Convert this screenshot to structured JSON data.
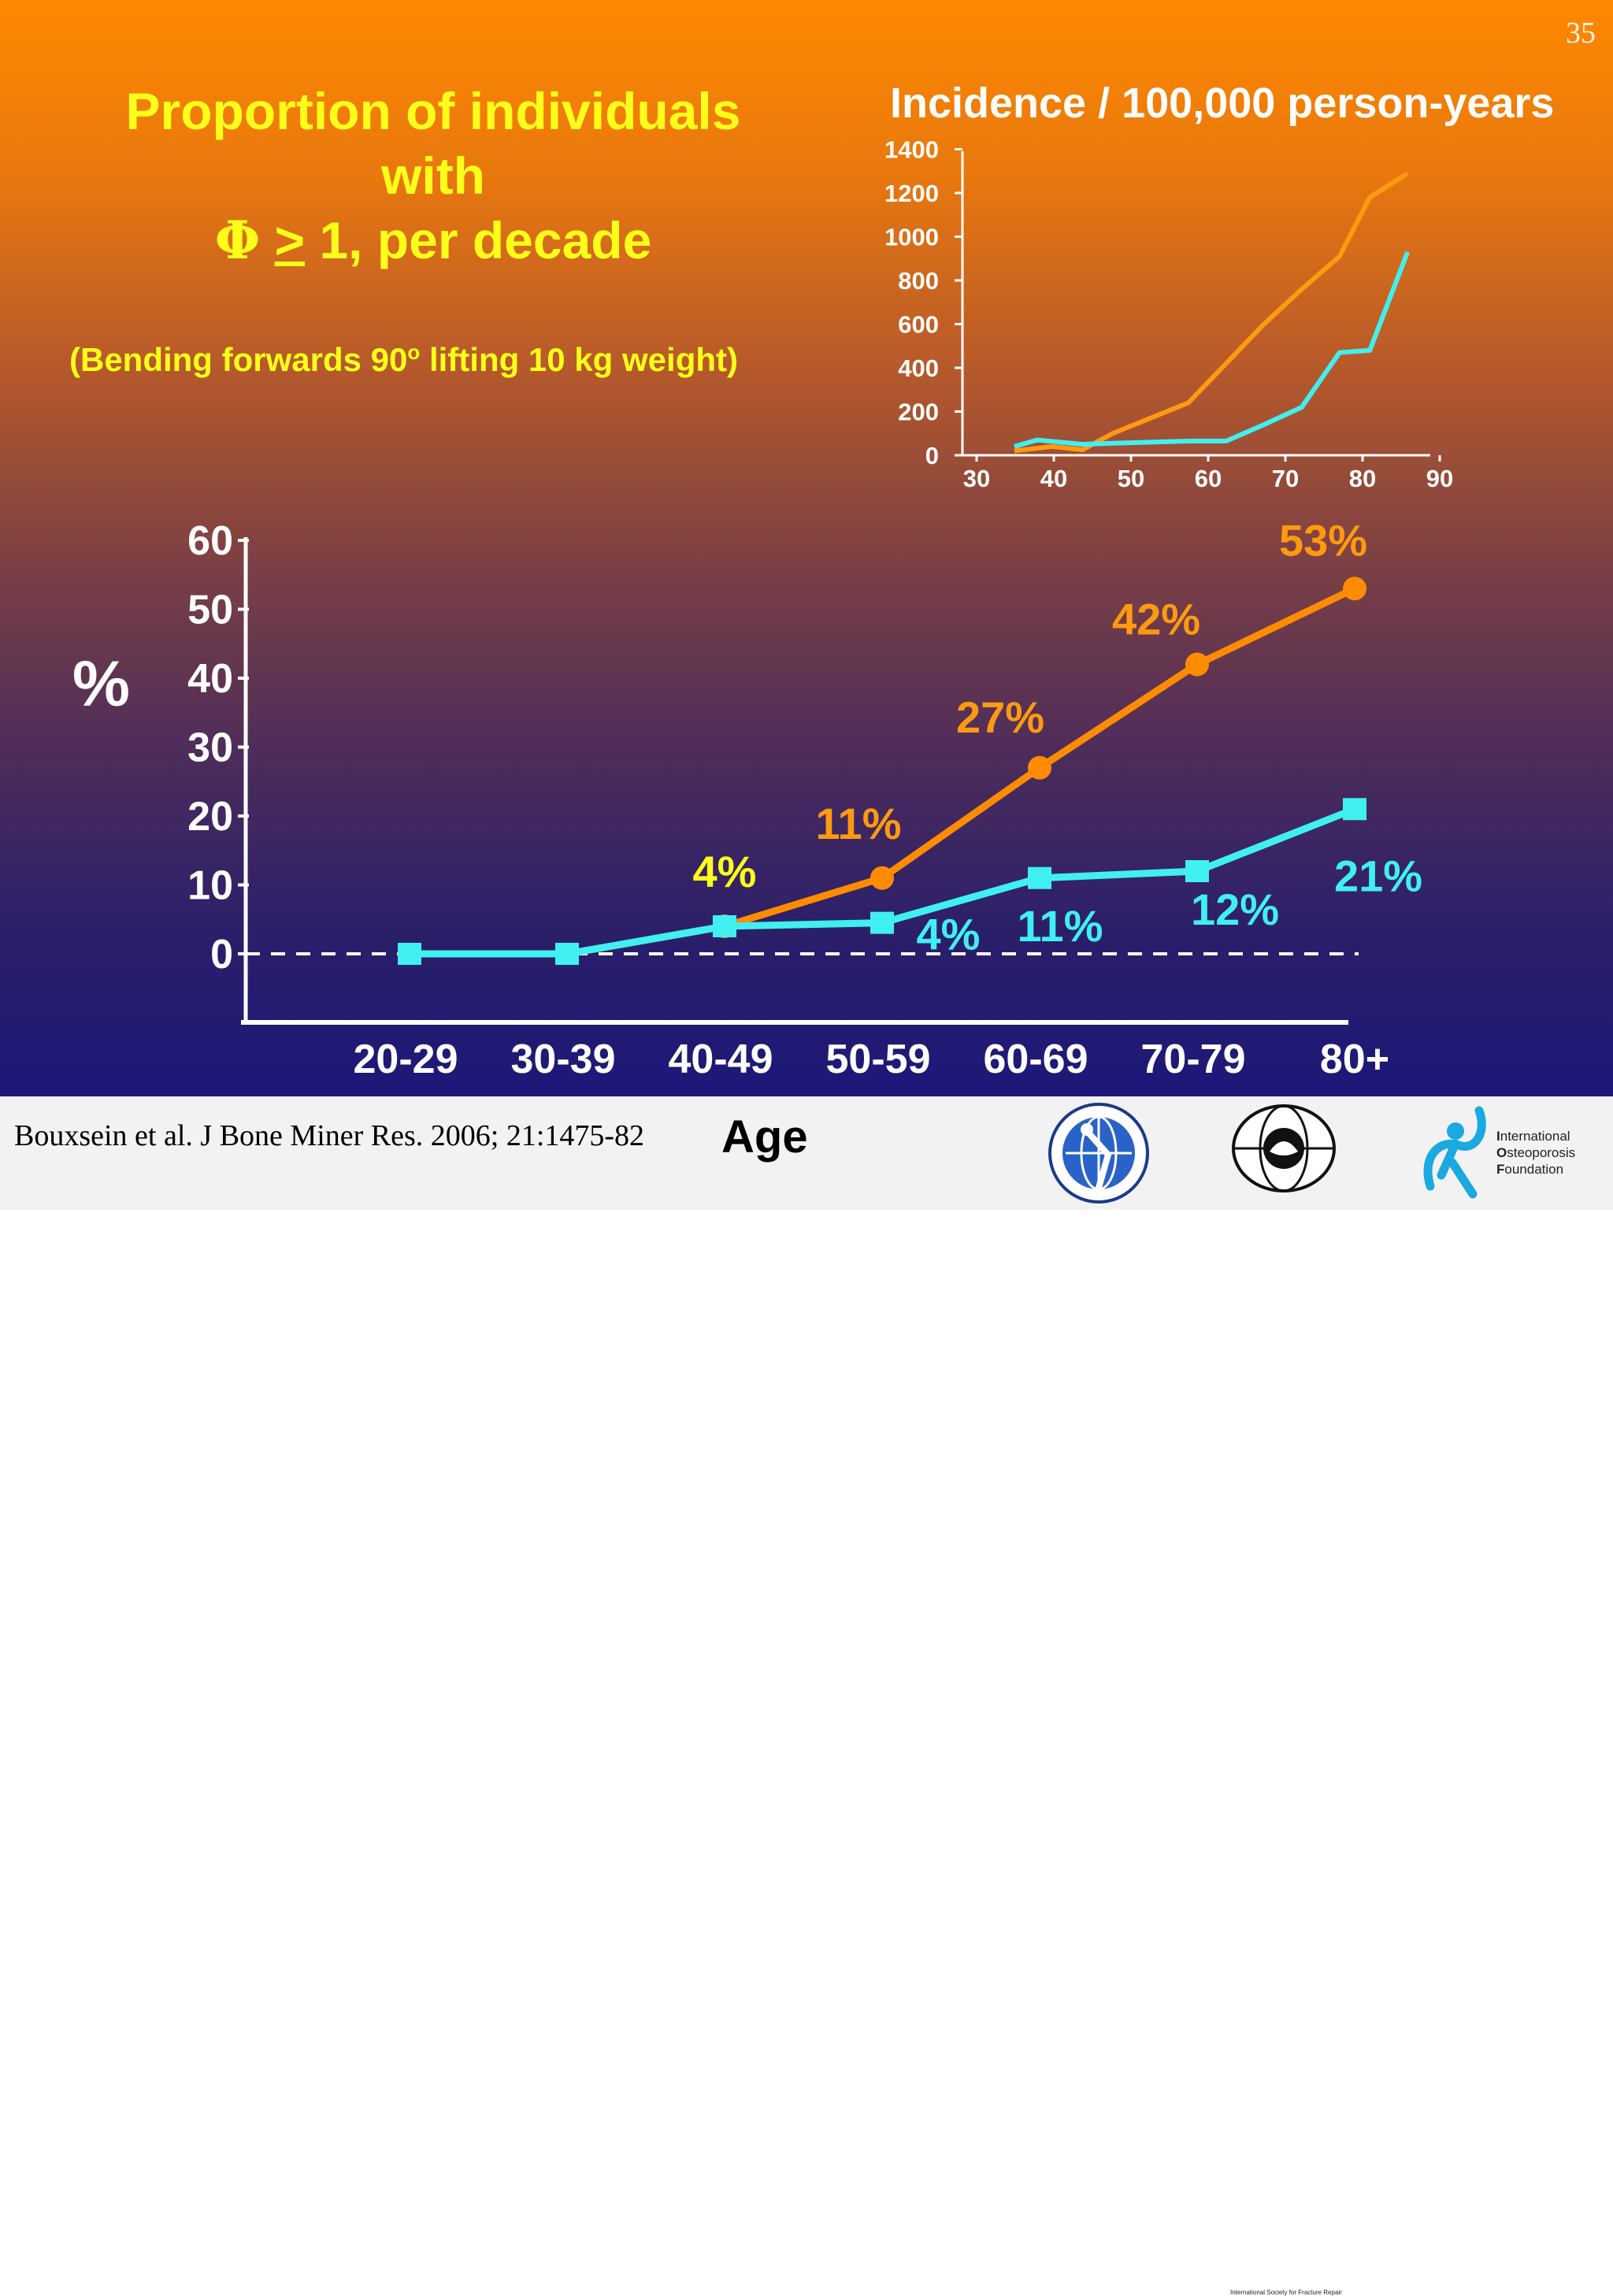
{
  "slide_number": "35",
  "left_title": {
    "line1": "Proportion of individuals",
    "line2": "with",
    "phi": "Φ",
    "ge": ">",
    "line3_rest": " 1, per decade"
  },
  "subtitle": {
    "before": "(Bending forwards 90",
    "sup": "o",
    "after": " lifting 10 kg weight)"
  },
  "right_title": "Incidence / 100,000 person-years",
  "citation": "Bouxsein et al. J Bone Miner Res. 2006; 21:1475-82",
  "xlabel": "Age",
  "ylabel": "%",
  "colors": {
    "orange": "#ff8c00",
    "cyan": "#40f0f0",
    "yellow": "#ffff1a",
    "label_orange": "#ff9a10"
  },
  "logos": {
    "iof_line1_initial": "I",
    "iof_line1_rest": "nternational",
    "iof_line2_initial": "O",
    "iof_line2_rest": "steoporosis",
    "iof_line3_initial": "F",
    "iof_line3_rest": "oundation",
    "isfr": "International Society for Fracture Repair",
    "bjd_icon": "bone-and-joint-decade-globe-icon",
    "isfr_icon": "isfr-globe-icon",
    "iof_icon": "iof-figure-icon"
  },
  "chart_data": [
    {
      "type": "line",
      "categories": [
        "20-29",
        "30-39",
        "40-49",
        "50-59",
        "60-69",
        "70-79",
        "80+"
      ],
      "ylim": [
        0,
        60
      ],
      "yticks": [
        0,
        10,
        20,
        30,
        40,
        50,
        60
      ],
      "xlabel": "Age",
      "ylabel": "%",
      "baseline_dashed": true,
      "series": [
        {
          "color": "#ff8c00",
          "marker": "circle",
          "values": [
            0,
            0,
            4,
            11,
            27,
            42,
            53
          ],
          "labels": [
            "",
            "",
            "4%",
            "11%",
            "27%",
            "42%",
            "53%"
          ],
          "label_colors": [
            "",
            "",
            "#ffff1a",
            "#ff9a10",
            "#ff9a10",
            "#ff9a10",
            "#ff9a10"
          ]
        },
        {
          "color": "#40f0f0",
          "marker": "square",
          "values": [
            0,
            0,
            4,
            4.5,
            11,
            12,
            21
          ],
          "labels": [
            "",
            "",
            "",
            "4%",
            "11%",
            "12%",
            "21%"
          ],
          "label_colors": [
            "",
            "",
            "",
            "#40f0f0",
            "#40f0f0",
            "#40f0f0",
            "#40f0f0"
          ]
        }
      ]
    },
    {
      "type": "line",
      "title": "Incidence / 100,000 person-years",
      "xlim": [
        30,
        90
      ],
      "ylim": [
        0,
        1400
      ],
      "xticks": [
        30,
        40,
        50,
        60,
        70,
        80,
        90
      ],
      "yticks": [
        0,
        200,
        400,
        600,
        800,
        1000,
        1200,
        1400
      ],
      "series": [
        {
          "color": "#ff9a10",
          "x": [
            35,
            40,
            44,
            48,
            53,
            58,
            63,
            68,
            73,
            78,
            82,
            87
          ],
          "y": [
            20,
            40,
            25,
            100,
            170,
            240,
            420,
            600,
            760,
            910,
            1180,
            1290
          ]
        },
        {
          "color": "#40f0f0",
          "x": [
            35,
            38,
            44,
            48,
            53,
            58,
            63,
            68,
            73,
            78,
            82,
            87
          ],
          "y": [
            40,
            70,
            50,
            55,
            60,
            65,
            65,
            140,
            220,
            470,
            480,
            930
          ]
        }
      ]
    }
  ]
}
